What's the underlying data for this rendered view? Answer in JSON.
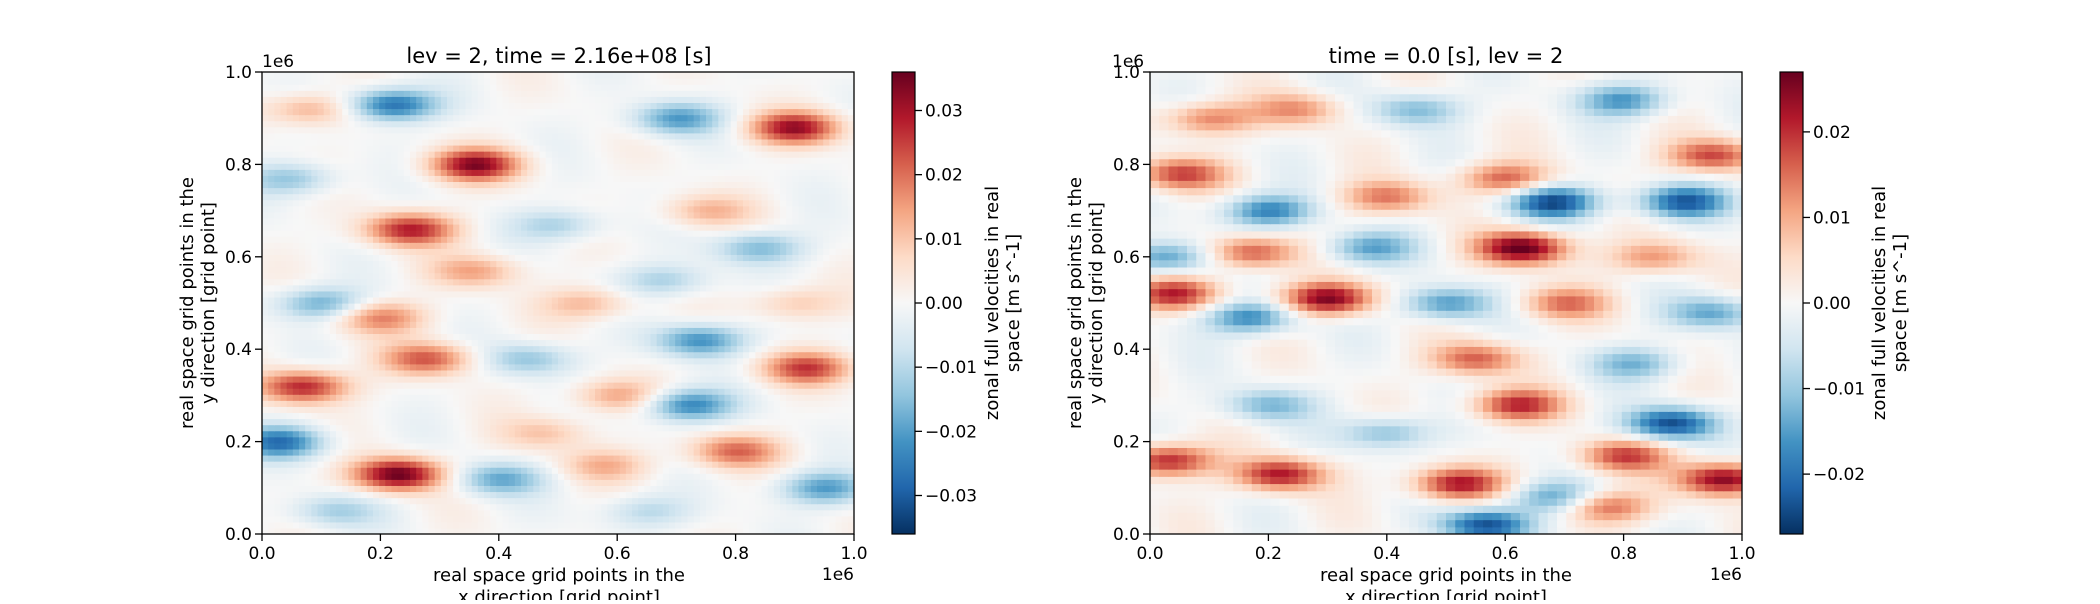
{
  "chart_data": [
    {
      "type": "heatmap",
      "title": "lev = 2, time = 2.16e+08 [s]",
      "xlabel_lines": [
        "real space grid points in the",
        "x direction [grid point]"
      ],
      "ylabel_lines": [
        "real space grid points in the",
        "y direction [grid point]"
      ],
      "x_ticks": [
        "0.0",
        "0.2",
        "0.4",
        "0.6",
        "0.8",
        "1.0"
      ],
      "y_ticks": [
        "0.0",
        "0.2",
        "0.4",
        "0.6",
        "0.8",
        "1.0"
      ],
      "x_offset_label": "1e6",
      "y_offset_label": "1e6",
      "xlim": [
        0,
        1000000
      ],
      "ylim": [
        0,
        1000000
      ],
      "colormap": "RdBu_r",
      "colorbar_label_lines": [
        "zonal full velocities in real",
        "space [m s^-1]"
      ],
      "colorbar_range": [
        -0.036,
        0.036
      ],
      "colorbar_ticks": [
        -0.03,
        -0.02,
        -0.01,
        0.0,
        0.01,
        0.02,
        0.03
      ],
      "colorbar_tick_labels": [
        "−0.03",
        "−0.02",
        "−0.01",
        "0.00",
        "0.01",
        "0.02",
        "0.03"
      ],
      "shading": "smooth",
      "features": [
        {
          "x": 0.08,
          "y": 0.92,
          "v": 0.014
        },
        {
          "x": 0.22,
          "y": 0.93,
          "v": -0.028
        },
        {
          "x": 0.36,
          "y": 0.8,
          "v": 0.032
        },
        {
          "x": 0.9,
          "y": 0.88,
          "v": 0.03
        },
        {
          "x": 0.7,
          "y": 0.9,
          "v": -0.02
        },
        {
          "x": 0.05,
          "y": 0.77,
          "v": -0.014
        },
        {
          "x": 0.25,
          "y": 0.66,
          "v": 0.028
        },
        {
          "x": 0.5,
          "y": 0.67,
          "v": -0.012
        },
        {
          "x": 0.75,
          "y": 0.7,
          "v": 0.012
        },
        {
          "x": 0.84,
          "y": 0.62,
          "v": -0.016
        },
        {
          "x": 0.1,
          "y": 0.5,
          "v": -0.018
        },
        {
          "x": 0.2,
          "y": 0.47,
          "v": 0.018
        },
        {
          "x": 0.36,
          "y": 0.57,
          "v": 0.014
        },
        {
          "x": 0.55,
          "y": 0.5,
          "v": 0.012
        },
        {
          "x": 0.68,
          "y": 0.55,
          "v": -0.012
        },
        {
          "x": 0.74,
          "y": 0.42,
          "v": -0.022
        },
        {
          "x": 0.9,
          "y": 0.5,
          "v": 0.01
        },
        {
          "x": 0.07,
          "y": 0.32,
          "v": 0.028
        },
        {
          "x": 0.28,
          "y": 0.38,
          "v": 0.022
        },
        {
          "x": 0.45,
          "y": 0.38,
          "v": -0.014
        },
        {
          "x": 0.6,
          "y": 0.3,
          "v": 0.014
        },
        {
          "x": 0.72,
          "y": 0.28,
          "v": -0.024
        },
        {
          "x": 0.92,
          "y": 0.36,
          "v": 0.024
        },
        {
          "x": 0.03,
          "y": 0.2,
          "v": -0.026
        },
        {
          "x": 0.23,
          "y": 0.13,
          "v": 0.036
        },
        {
          "x": 0.4,
          "y": 0.12,
          "v": -0.018
        },
        {
          "x": 0.58,
          "y": 0.15,
          "v": 0.012
        },
        {
          "x": 0.8,
          "y": 0.18,
          "v": 0.02
        },
        {
          "x": 0.95,
          "y": 0.1,
          "v": -0.02
        },
        {
          "x": 0.12,
          "y": 0.05,
          "v": -0.012
        },
        {
          "x": 0.65,
          "y": 0.05,
          "v": -0.01
        },
        {
          "x": 0.48,
          "y": 0.22,
          "v": 0.01
        }
      ]
    },
    {
      "type": "heatmap",
      "title": "time = 0.0 [s], lev = 2",
      "xlabel_lines": [
        "real space grid points in the",
        "x direction [grid point]"
      ],
      "ylabel_lines": [
        "real space grid points in the",
        "y direction [grid point]"
      ],
      "x_ticks": [
        "0.0",
        "0.2",
        "0.4",
        "0.6",
        "0.8",
        "1.0"
      ],
      "y_ticks": [
        "0.0",
        "0.2",
        "0.4",
        "0.6",
        "0.8",
        "1.0"
      ],
      "x_offset_label": "1e6",
      "y_offset_label": "1e6",
      "xlim": [
        0,
        1000000
      ],
      "ylim": [
        0,
        1000000
      ],
      "colormap": "RdBu_r",
      "colorbar_label_lines": [
        "zonal full velocities in real",
        "space [m s^-1]"
      ],
      "colorbar_range": [
        -0.027,
        0.027
      ],
      "colorbar_ticks": [
        -0.02,
        -0.01,
        0.0,
        0.01,
        0.02
      ],
      "colorbar_tick_labels": [
        "−0.02",
        "−0.01",
        "0.00",
        "0.01",
        "0.02"
      ],
      "shading": "pixelated",
      "features": [
        {
          "x": 0.1,
          "y": 0.9,
          "v": 0.014
        },
        {
          "x": 0.25,
          "y": 0.92,
          "v": 0.012
        },
        {
          "x": 0.45,
          "y": 0.92,
          "v": -0.012
        },
        {
          "x": 0.8,
          "y": 0.94,
          "v": -0.016
        },
        {
          "x": 0.95,
          "y": 0.82,
          "v": 0.018
        },
        {
          "x": 0.05,
          "y": 0.78,
          "v": 0.018
        },
        {
          "x": 0.2,
          "y": 0.7,
          "v": -0.018
        },
        {
          "x": 0.4,
          "y": 0.73,
          "v": 0.014
        },
        {
          "x": 0.6,
          "y": 0.77,
          "v": 0.016
        },
        {
          "x": 0.68,
          "y": 0.72,
          "v": -0.024
        },
        {
          "x": 0.9,
          "y": 0.72,
          "v": -0.022
        },
        {
          "x": 0.03,
          "y": 0.6,
          "v": -0.016
        },
        {
          "x": 0.17,
          "y": 0.61,
          "v": 0.018
        },
        {
          "x": 0.37,
          "y": 0.62,
          "v": -0.014
        },
        {
          "x": 0.63,
          "y": 0.62,
          "v": 0.028
        },
        {
          "x": 0.85,
          "y": 0.6,
          "v": 0.012
        },
        {
          "x": 0.04,
          "y": 0.52,
          "v": 0.02
        },
        {
          "x": 0.3,
          "y": 0.51,
          "v": 0.026
        },
        {
          "x": 0.5,
          "y": 0.5,
          "v": -0.016
        },
        {
          "x": 0.7,
          "y": 0.5,
          "v": 0.014
        },
        {
          "x": 0.95,
          "y": 0.48,
          "v": -0.014
        },
        {
          "x": 0.17,
          "y": 0.47,
          "v": -0.018
        },
        {
          "x": 0.55,
          "y": 0.38,
          "v": 0.016
        },
        {
          "x": 0.82,
          "y": 0.37,
          "v": -0.012
        },
        {
          "x": 0.2,
          "y": 0.28,
          "v": -0.012
        },
        {
          "x": 0.62,
          "y": 0.28,
          "v": 0.02
        },
        {
          "x": 0.88,
          "y": 0.24,
          "v": -0.024
        },
        {
          "x": 0.03,
          "y": 0.16,
          "v": 0.022
        },
        {
          "x": 0.22,
          "y": 0.13,
          "v": 0.022
        },
        {
          "x": 0.52,
          "y": 0.11,
          "v": 0.022
        },
        {
          "x": 0.8,
          "y": 0.17,
          "v": 0.018
        },
        {
          "x": 0.97,
          "y": 0.12,
          "v": 0.026
        },
        {
          "x": 0.57,
          "y": 0.02,
          "v": -0.024
        },
        {
          "x": 0.68,
          "y": 0.08,
          "v": -0.014
        },
        {
          "x": 0.4,
          "y": 0.22,
          "v": -0.012
        },
        {
          "x": 0.77,
          "y": 0.06,
          "v": 0.016
        }
      ]
    }
  ]
}
